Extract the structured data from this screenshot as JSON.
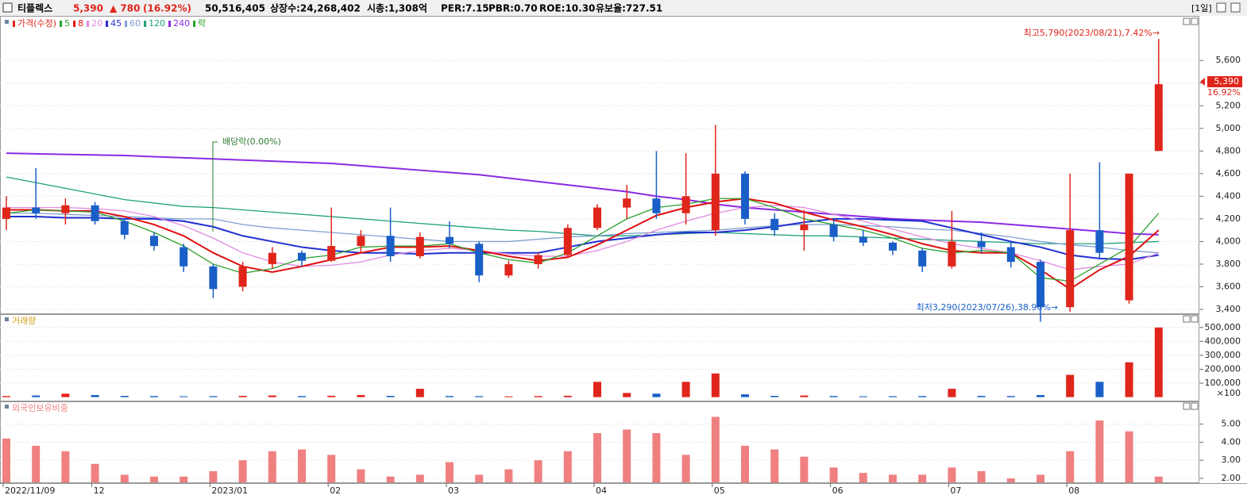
{
  "header": {
    "name": "티플렉스",
    "price": "5,390",
    "change": "▲ 780",
    "rate": "(16.92%)",
    "volume": "50,516,405",
    "listed": "상장수:24,268,402",
    "cap": "시총:1,308억",
    "per": "PER:7.15",
    "pbr": "PBR:0.70",
    "roe": "ROE:10.30",
    "reserve": "유보율:727.51",
    "period": "[1일]"
  },
  "chart_data": [
    {
      "type": "candlestick",
      "price_label": "가격(수정)",
      "ex_dividend_label": "락",
      "up_color": "#e0251b",
      "down_color": "#1a5fc8",
      "open": [
        4200,
        4300,
        4250,
        4320,
        4180,
        4050,
        3950,
        3780,
        3600,
        3800,
        3900,
        3830,
        3960,
        4050,
        3870,
        4040,
        3980,
        3700,
        3800,
        3880,
        4120,
        4300,
        4380,
        4250,
        4100,
        4600,
        4200,
        4100,
        4150,
        4040,
        3990,
        3920,
        3780,
        4000,
        3950,
        3820,
        3420,
        4100,
        3480,
        4800
      ],
      "high": [
        4400,
        4650,
        4380,
        4350,
        4200,
        4080,
        3980,
        3800,
        3820,
        3950,
        3920,
        4300,
        4100,
        4300,
        4080,
        4180,
        4000,
        3830,
        3900,
        4150,
        4330,
        4500,
        4800,
        4780,
        5030,
        4620,
        4250,
        4280,
        4200,
        4100,
        4000,
        3940,
        4270,
        4080,
        3990,
        3840,
        4600,
        4700,
        4600,
        5790
      ],
      "low": [
        4100,
        4200,
        4150,
        4150,
        4020,
        3920,
        3730,
        3500,
        3560,
        3760,
        3780,
        3820,
        3900,
        3820,
        3850,
        3940,
        3640,
        3680,
        3760,
        3860,
        4100,
        4200,
        4200,
        4150,
        4050,
        4150,
        4050,
        3920,
        4000,
        3960,
        3880,
        3730,
        3760,
        3900,
        3770,
        3290,
        3380,
        3850,
        3450,
        4800
      ],
      "close": [
        4300,
        4250,
        4320,
        4180,
        4060,
        3960,
        3780,
        3580,
        3780,
        3900,
        3830,
        3960,
        4050,
        3870,
        4040,
        3980,
        3700,
        3800,
        3880,
        4120,
        4300,
        4380,
        4250,
        4400,
        4600,
        4200,
        4100,
        4150,
        4040,
        3990,
        3920,
        3780,
        4000,
        3950,
        3820,
        3420,
        4100,
        3900,
        4600,
        5390
      ],
      "series": [
        {
          "name": "5",
          "color": "#2ca02c",
          "values": [
            4250,
            4280,
            4270,
            4260,
            4180,
            4080,
            3960,
            3800,
            3720,
            3760,
            3850,
            3880,
            3950,
            3960,
            3960,
            3980,
            3900,
            3840,
            3810,
            3900,
            4050,
            4200,
            4300,
            4330,
            4380,
            4380,
            4300,
            4200,
            4150,
            4100,
            4030,
            3940,
            3900,
            3920,
            3900,
            3680,
            3650,
            3800,
            3950,
            4250
          ]
        },
        {
          "name": "8",
          "color": "#e01010",
          "values": [
            4280,
            4280,
            4270,
            4270,
            4220,
            4150,
            4050,
            3900,
            3780,
            3730,
            3780,
            3840,
            3900,
            3950,
            3950,
            3960,
            3920,
            3870,
            3830,
            3860,
            3970,
            4100,
            4230,
            4300,
            4350,
            4380,
            4340,
            4260,
            4190,
            4130,
            4060,
            3980,
            3920,
            3900,
            3900,
            3750,
            3580,
            3750,
            3870,
            4100
          ]
        },
        {
          "name": "20",
          "color": "#e08ae0",
          "values": [
            4300,
            4300,
            4300,
            4290,
            4270,
            4220,
            4140,
            4030,
            3900,
            3820,
            3780,
            3790,
            3820,
            3880,
            3920,
            3940,
            3920,
            3890,
            3870,
            3870,
            3920,
            4000,
            4100,
            4180,
            4250,
            4300,
            4320,
            4300,
            4240,
            4180,
            4110,
            4040,
            3980,
            3940,
            3900,
            3830,
            3750,
            3780,
            3800,
            3900
          ]
        },
        {
          "name": "45",
          "color": "#1f2fd0",
          "values": [
            4220,
            4220,
            4210,
            4210,
            4200,
            4200,
            4180,
            4130,
            4050,
            4000,
            3950,
            3920,
            3900,
            3900,
            3890,
            3900,
            3900,
            3900,
            3900,
            3950,
            4000,
            4030,
            4060,
            4080,
            4080,
            4100,
            4130,
            4170,
            4200,
            4200,
            4190,
            4180,
            4120,
            4060,
            4000,
            3950,
            3880,
            3850,
            3840,
            3880
          ]
        },
        {
          "name": "60",
          "color": "#7fa0d0",
          "values": [
            4250,
            4250,
            4240,
            4230,
            4220,
            4210,
            4200,
            4200,
            4150,
            4120,
            4100,
            4080,
            4060,
            4040,
            4020,
            4000,
            4000,
            4000,
            4020,
            4040,
            4050,
            4070,
            4080,
            4090,
            4100,
            4120,
            4140,
            4150,
            4150,
            4140,
            4130,
            4110,
            4100,
            4070,
            4040,
            4000,
            3970,
            3950,
            3920,
            3900
          ]
        },
        {
          "name": "120",
          "color": "#20a080",
          "values": [
            4570,
            4520,
            4470,
            4420,
            4370,
            4340,
            4310,
            4300,
            4280,
            4260,
            4240,
            4220,
            4200,
            4180,
            4160,
            4140,
            4120,
            4100,
            4090,
            4070,
            4050,
            4050,
            4060,
            4070,
            4080,
            4070,
            4060,
            4050,
            4050,
            4040,
            4030,
            4020,
            4010,
            4000,
            3990,
            3980,
            3980,
            3980,
            3990,
            4000
          ]
        },
        {
          "name": "240",
          "color": "#8a2be2",
          "values": [
            4780,
            4775,
            4770,
            4765,
            4760,
            4750,
            4740,
            4730,
            4720,
            4710,
            4700,
            4690,
            4670,
            4650,
            4630,
            4610,
            4590,
            4560,
            4530,
            4500,
            4470,
            4440,
            4400,
            4370,
            4330,
            4300,
            4280,
            4260,
            4240,
            4220,
            4200,
            4190,
            4180,
            4170,
            4150,
            4130,
            4110,
            4090,
            4070,
            4060
          ]
        }
      ],
      "ylim": [
        3365,
        5980
      ],
      "yticks": [
        {
          "value": 3400,
          "label": "3,400"
        },
        {
          "value": 3600,
          "label": "3,600"
        },
        {
          "value": 3800,
          "label": "3,800"
        },
        {
          "value": 4000,
          "label": "4,000"
        },
        {
          "value": 4200,
          "label": "4,200"
        },
        {
          "value": 4400,
          "label": "4,400"
        },
        {
          "value": 4600,
          "label": "4,600"
        },
        {
          "value": 4800,
          "label": "4,800"
        },
        {
          "value": 5000,
          "label": "5,000"
        },
        {
          "value": 5200,
          "label": "5,200"
        },
        {
          "value": 5400,
          "label": "5,400"
        },
        {
          "value": 5600,
          "label": "5,600"
        }
      ],
      "annotations": {
        "high": "최고5,790(2023/08/21),7.42%→",
        "low": "최저3,290(2023/07/26),38.96%→",
        "dividend": "배당락(0.00%)",
        "last": "5,390",
        "last_rate": "16.92%"
      }
    },
    {
      "type": "bar",
      "title": "거래량",
      "unit_note": "×100",
      "color": "#d4a017",
      "values": [
        8000,
        12000,
        25000,
        15000,
        9000,
        8000,
        6000,
        7000,
        9000,
        12000,
        8000,
        10000,
        15000,
        9000,
        60000,
        8000,
        7000,
        6000,
        8000,
        10000,
        110000,
        30000,
        25000,
        110000,
        170000,
        20000,
        9000,
        12000,
        8000,
        6000,
        7000,
        8000,
        60000,
        9000,
        8000,
        15000,
        160000,
        110000,
        250000,
        500000
      ],
      "ylim": [
        -25000,
        590000
      ],
      "yticks": [
        {
          "value": 100000,
          "label": "100,000"
        },
        {
          "value": 200000,
          "label": "200,000"
        },
        {
          "value": 300000,
          "label": "300,000"
        },
        {
          "value": 400000,
          "label": "400,000"
        },
        {
          "value": 500000,
          "label": "500,000"
        }
      ]
    },
    {
      "type": "bar",
      "title": "외국인보유비중",
      "color": "#f08080",
      "categories": [
        "2022/11/09",
        null,
        null,
        "12",
        null,
        null,
        null,
        "2023/01",
        null,
        null,
        null,
        "02",
        null,
        null,
        null,
        "03",
        null,
        null,
        null,
        null,
        "04",
        null,
        null,
        null,
        "05",
        null,
        null,
        null,
        "06",
        null,
        null,
        null,
        "07",
        null,
        null,
        null,
        "08",
        null,
        null,
        null
      ],
      "values": [
        4.2,
        3.8,
        3.5,
        2.8,
        2.2,
        2.1,
        2.1,
        2.4,
        3.0,
        3.5,
        3.6,
        3.3,
        2.5,
        2.1,
        2.2,
        2.9,
        2.2,
        2.5,
        3.0,
        3.5,
        4.5,
        4.7,
        4.5,
        3.3,
        5.4,
        3.8,
        3.6,
        3.2,
        2.6,
        2.3,
        2.2,
        2.2,
        2.6,
        2.4,
        2.0,
        2.2,
        3.5,
        5.2,
        4.6,
        2.1
      ],
      "ylim": [
        1.78,
        6.21
      ],
      "yticks": [
        {
          "value": 2,
          "label": "2.00"
        },
        {
          "value": 3,
          "label": "3.00"
        },
        {
          "value": 4,
          "label": "4.00"
        },
        {
          "value": 5,
          "label": "5.00"
        }
      ]
    }
  ]
}
